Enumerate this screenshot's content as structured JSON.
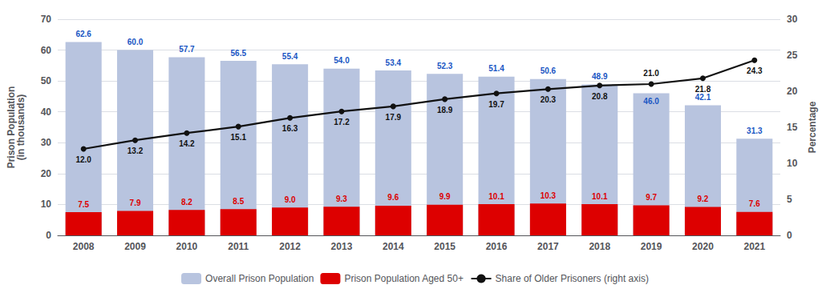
{
  "chart_data": {
    "type": "bar",
    "categories": [
      "2008",
      "2009",
      "2010",
      "2011",
      "2012",
      "2013",
      "2014",
      "2015",
      "2016",
      "2017",
      "2018",
      "2019",
      "2020",
      "2021"
    ],
    "series": [
      {
        "name": "Overall Prison Population",
        "type": "bar",
        "color": "#b8c4df",
        "label_color": "#1a56c4",
        "values": [
          62.6,
          60.0,
          57.7,
          56.5,
          55.4,
          54.0,
          53.4,
          52.3,
          51.4,
          50.6,
          48.9,
          46.0,
          42.1,
          31.3
        ],
        "value_labels": [
          "62.6",
          "60.0",
          "57.7",
          "56.5",
          "55.4",
          "54.0",
          "53.4",
          "52.3",
          "51.4",
          "50.6",
          "48.9",
          "46.0",
          "42.1",
          "31.3"
        ]
      },
      {
        "name": "Prison Population Aged 50+",
        "type": "bar",
        "color": "#dd0000",
        "label_color": "#dd0000",
        "values": [
          7.5,
          7.9,
          8.2,
          8.5,
          9.0,
          9.3,
          9.6,
          9.9,
          10.1,
          10.3,
          10.1,
          9.7,
          9.2,
          7.6
        ],
        "value_labels": [
          "7.5",
          "7.9",
          "8.2",
          "8.5",
          "9.0",
          "9.3",
          "9.6",
          "9.9",
          "10.1",
          "10.3",
          "10.1",
          "9.7",
          "9.2",
          "7.6"
        ]
      },
      {
        "name": "Share of Older Prisoners (right axis)",
        "type": "line",
        "axis": "y2",
        "color": "#111111",
        "label_color": "#111111",
        "marker": "circle",
        "values": [
          12.0,
          13.2,
          14.2,
          15.1,
          16.3,
          17.2,
          17.9,
          18.9,
          19.7,
          20.3,
          20.8,
          21.0,
          21.8,
          24.3
        ],
        "value_labels": [
          "12.0",
          "13.2",
          "14.2",
          "15.1",
          "16.3",
          "17.2",
          "17.9",
          "18.9",
          "19.7",
          "20.3",
          "20.8",
          "21.0",
          "21.8",
          "24.3"
        ]
      }
    ],
    "ylabel": "Prison Population\n(in thousands)",
    "y2label": "Percentage",
    "ylim": [
      0,
      70
    ],
    "yticks": [
      0,
      10,
      20,
      30,
      40,
      50,
      60,
      70
    ],
    "y2lim": [
      0,
      30
    ],
    "y2ticks": [
      0,
      5,
      10,
      15,
      20,
      25,
      30
    ],
    "grid": true,
    "legend": "bottom",
    "data_labels": true
  }
}
